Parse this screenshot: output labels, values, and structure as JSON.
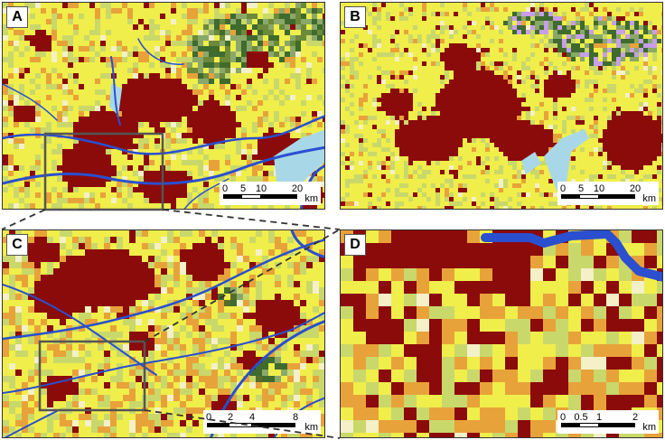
{
  "panels": [
    {
      "label": "A",
      "scale": {
        "ticks": [
          "0",
          "5",
          "10",
          "20"
        ],
        "unit": "km"
      }
    },
    {
      "label": "B",
      "scale": {
        "ticks": [
          "0",
          "5",
          "10",
          "20"
        ],
        "unit": "km"
      }
    },
    {
      "label": "C",
      "scale": {
        "ticks": [
          "0",
          "2",
          "4",
          "8"
        ],
        "unit": "km"
      }
    },
    {
      "label": "D",
      "scale": {
        "ticks": [
          "0",
          "0.5",
          "1",
          "2"
        ],
        "unit": "km"
      }
    }
  ],
  "colors": {
    "urban": "#8b0a0a",
    "cropland": "#f0ee4a",
    "grassland": "#c9d86a",
    "bare": "#e8a23a",
    "forest": "#3f6b2e",
    "shrub": "#8aa86a",
    "water": "#2a4fcf",
    "wetland": "#a8d8e8",
    "other": "#c89ee8",
    "light": "#f4f0c8"
  },
  "icons": [
    "zoom-connector-lines",
    "extent-rectangle"
  ]
}
